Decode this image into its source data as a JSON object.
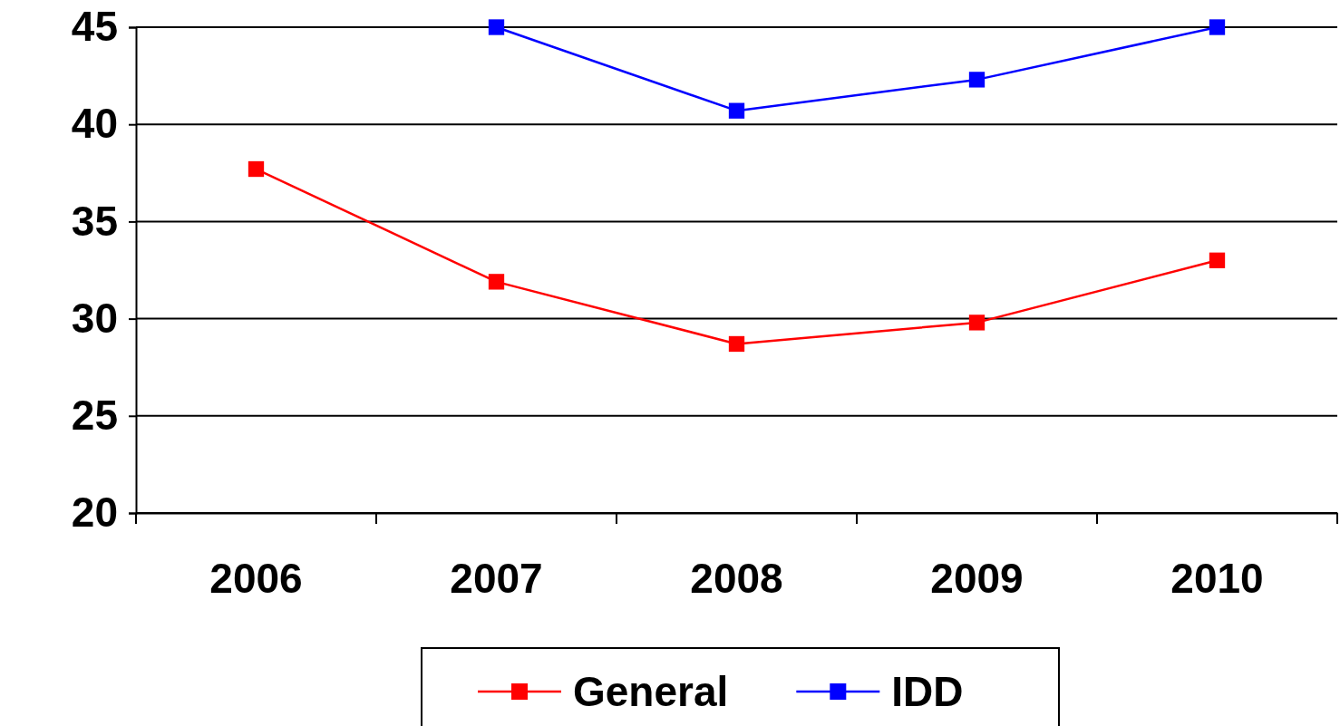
{
  "chart_data": {
    "type": "line",
    "categories": [
      "2006",
      "2007",
      "2008",
      "2009",
      "2010"
    ],
    "series": [
      {
        "name": "General",
        "color": "#ff0000",
        "values": [
          37.7,
          31.9,
          28.7,
          29.8,
          33.0
        ]
      },
      {
        "name": "IDD",
        "color": "#0000ff",
        "values": [
          null,
          45,
          40.7,
          42.3,
          45
        ]
      }
    ],
    "ylim": [
      20,
      45
    ],
    "yticks": [
      20,
      25,
      30,
      35,
      40,
      45
    ],
    "grid": "y",
    "legend": "bottom",
    "marker": "square",
    "line_style": "solid"
  }
}
